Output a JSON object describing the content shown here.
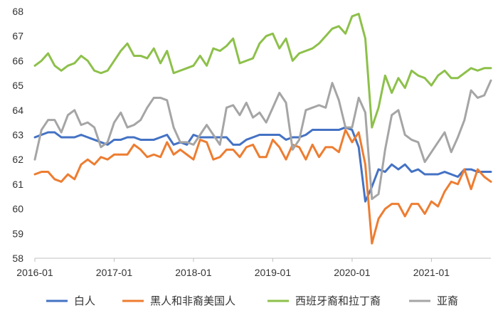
{
  "chart_data": {
    "type": "line",
    "title": "",
    "xlabel": "",
    "ylabel": "",
    "ylim": [
      58,
      68
    ],
    "yticks": [
      58,
      59,
      60,
      61,
      62,
      63,
      64,
      65,
      66,
      67,
      68
    ],
    "xticks": [
      "2016-01",
      "2017-01",
      "2018-01",
      "2019-01",
      "2020-01",
      "2021-01"
    ],
    "x_start": "2016-01",
    "x_end": "2021-10",
    "grid": false,
    "legend_position": "bottom",
    "series": [
      {
        "name": "白人",
        "color": "#4472C4",
        "values": [
          62.9,
          63.0,
          63.1,
          63.1,
          62.9,
          62.9,
          62.9,
          63.0,
          62.9,
          62.8,
          62.7,
          62.6,
          62.8,
          62.8,
          62.9,
          62.9,
          62.8,
          62.8,
          62.8,
          62.9,
          63.0,
          62.6,
          62.7,
          62.6,
          63.0,
          62.9,
          62.9,
          62.9,
          62.9,
          62.9,
          62.6,
          62.6,
          62.8,
          62.9,
          63.0,
          63.0,
          63.0,
          63.0,
          62.8,
          62.9,
          62.9,
          63.0,
          63.2,
          63.2,
          63.2,
          63.2,
          63.2,
          63.3,
          63.2,
          62.5,
          60.3,
          60.9,
          61.6,
          61.5,
          61.8,
          61.6,
          61.8,
          61.5,
          61.6,
          61.4,
          61.4,
          61.4,
          61.5,
          61.4,
          61.3,
          61.6,
          61.6,
          61.5,
          61.5,
          61.5
        ]
      },
      {
        "name": "黑人和非裔美国人",
        "color": "#ED7D31",
        "values": [
          61.4,
          61.5,
          61.5,
          61.2,
          61.1,
          61.4,
          61.2,
          61.8,
          62.0,
          61.8,
          62.1,
          62.0,
          62.2,
          62.2,
          62.2,
          62.6,
          62.4,
          62.1,
          62.2,
          62.1,
          62.7,
          62.2,
          62.4,
          62.2,
          62.0,
          62.8,
          62.7,
          62.0,
          62.1,
          62.4,
          62.4,
          62.1,
          62.5,
          62.6,
          62.1,
          62.1,
          62.8,
          62.5,
          62.0,
          62.6,
          62.5,
          62.0,
          62.6,
          62.1,
          62.5,
          62.5,
          62.3,
          63.2,
          62.7,
          63.1,
          61.8,
          58.6,
          59.6,
          60.0,
          60.2,
          60.2,
          59.7,
          60.2,
          60.2,
          59.8,
          60.3,
          60.1,
          60.7,
          61.1,
          61.0,
          61.6,
          60.8,
          61.6,
          61.3,
          61.1
        ]
      },
      {
        "name": "西班牙裔和拉丁裔",
        "color": "#8DC04A",
        "values": [
          65.8,
          66.0,
          66.3,
          65.8,
          65.6,
          65.8,
          65.9,
          66.2,
          66.0,
          65.6,
          65.5,
          65.6,
          66.0,
          66.4,
          66.7,
          66.2,
          66.2,
          66.1,
          66.5,
          65.9,
          66.4,
          65.5,
          65.6,
          65.7,
          65.8,
          66.2,
          65.8,
          66.5,
          66.4,
          66.6,
          66.9,
          65.9,
          66.0,
          66.1,
          66.7,
          67.0,
          67.1,
          66.5,
          66.9,
          66.0,
          66.3,
          66.4,
          66.5,
          66.7,
          67.0,
          67.3,
          67.4,
          67.1,
          67.8,
          67.9,
          66.9,
          63.3,
          64.1,
          65.4,
          64.7,
          65.3,
          64.9,
          65.6,
          65.4,
          65.3,
          65.0,
          65.4,
          65.6,
          65.3,
          65.3,
          65.5,
          65.7,
          65.6,
          65.7,
          65.7
        ]
      },
      {
        "name": "亚裔",
        "color": "#A5A5A5",
        "values": [
          62.0,
          63.2,
          63.6,
          63.6,
          63.1,
          63.8,
          64.0,
          63.4,
          63.5,
          63.3,
          62.5,
          62.7,
          63.5,
          63.9,
          63.3,
          63.4,
          63.6,
          64.1,
          64.5,
          64.5,
          64.4,
          63.3,
          62.7,
          62.7,
          62.6,
          63.0,
          63.4,
          63.0,
          62.6,
          64.1,
          64.2,
          63.8,
          64.3,
          63.7,
          63.9,
          63.5,
          64.1,
          64.7,
          64.3,
          62.4,
          62.8,
          64.0,
          64.1,
          64.2,
          64.1,
          65.1,
          64.4,
          63.3,
          63.3,
          64.5,
          63.9,
          60.4,
          60.6,
          62.4,
          63.8,
          64.0,
          63.0,
          62.8,
          62.7,
          61.9,
          62.3,
          62.7,
          63.1,
          62.3,
          62.9,
          63.6,
          64.8,
          64.5,
          64.6,
          65.2
        ]
      }
    ]
  }
}
